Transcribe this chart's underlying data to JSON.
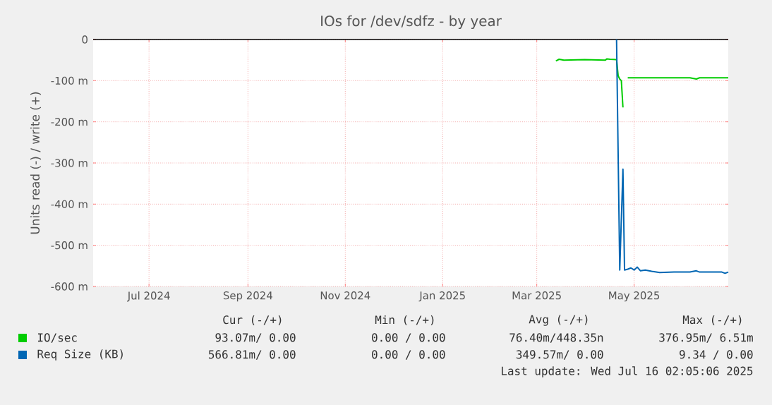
{
  "chart_data": {
    "type": "line",
    "title": "IOs for /dev/sdfz - by year",
    "ylabel": "Units read (-) / write (+)",
    "xlim": [
      "2024-06-11",
      "2025-07-14"
    ],
    "xticks": [
      {
        "value": "2024-07-16",
        "label": "Jul 2024"
      },
      {
        "value": "2024-09-16",
        "label": "Sep 2024"
      },
      {
        "value": "2024-11-16",
        "label": "Nov 2024"
      },
      {
        "value": "2025-01-16",
        "label": "Jan 2025"
      },
      {
        "value": "2025-03-16",
        "label": "Mar 2025"
      },
      {
        "value": "2025-05-16",
        "label": "May 2025"
      }
    ],
    "ylim": [
      -600,
      0
    ],
    "yticks": [
      0,
      {
        "value": -100,
        "label": "-100 m"
      },
      {
        "value": -200,
        "label": "-200 m"
      },
      {
        "value": -300,
        "label": "-300 m"
      },
      {
        "value": -400,
        "label": "-400 m"
      },
      {
        "value": -500,
        "label": "-500 m"
      },
      {
        "value": -600,
        "label": "-600 m"
      }
    ],
    "grid": true,
    "legend": "bottom",
    "ref_lines": [
      {
        "axis": "y",
        "value": 0,
        "color": "#000000"
      }
    ],
    "series": [
      {
        "name": "IO/sec",
        "color": "#00cc00",
        "x": [
          "2025-03-28",
          "2025-03-30",
          "2025-04-02",
          "2025-04-15",
          "2025-04-28",
          "2025-04-29",
          "2025-05-01",
          "2025-05-05",
          "2025-05-06",
          "2025-05-07",
          "2025-05-08",
          "2025-05-09",
          "2025-05-10",
          "2025-05-12",
          "2025-06-20",
          "2025-06-24",
          "2025-06-26",
          "2025-07-14"
        ],
        "values": [
          -52,
          -48,
          -50,
          -49,
          -50,
          -47,
          -48,
          -49,
          -88,
          -96,
          -100,
          -165,
          null,
          -93,
          -93,
          -96,
          -93,
          -93
        ]
      },
      {
        "name": "Req Size (KB)",
        "color": "#0066b3",
        "x": [
          "2025-05-05",
          "2025-05-07",
          "2025-05-09",
          "2025-05-10",
          "2025-05-12",
          "2025-05-14",
          "2025-05-16",
          "2025-05-18",
          "2025-05-20",
          "2025-05-23",
          "2025-05-27",
          "2025-06-01",
          "2025-06-10",
          "2025-06-20",
          "2025-06-24",
          "2025-06-26",
          "2025-07-10",
          "2025-07-12",
          "2025-07-14"
        ],
        "values": [
          0,
          -560,
          -315,
          -560,
          -558,
          -555,
          -560,
          -553,
          -562,
          -560,
          -563,
          -566,
          -565,
          -565,
          -562,
          -565,
          -565,
          -568,
          -565
        ]
      }
    ],
    "annotations": [
      "Cur (-/+)",
      "Min (-/+)",
      "Avg (-/+)",
      "Max (-/+)",
      "93.07m/ 0.00",
      "0.00 / 0.00",
      "76.40m/448.35n",
      "376.95m/ 6.51m",
      "566.81m/ 0.00",
      "0.00 / 0.00",
      "349.57m/ 0.00",
      "9.34 / 0.00",
      "Last update: Wed Jul 16 02:05:06 2025"
    ]
  }
}
